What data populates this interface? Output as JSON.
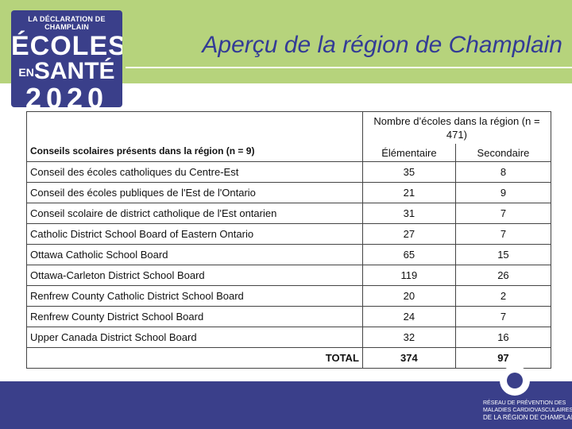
{
  "logo": {
    "line1": "LA DÉCLARATION DE CHAMPLAIN",
    "line2": "ÉCOLES",
    "line3_small": "EN",
    "line3": "SANTÉ",
    "line4": "2020"
  },
  "title": "Aperçu de la région de Champlain",
  "table": {
    "header_name": "Conseils scolaires présents dans la région (n = 9)",
    "header_group": "Nombre d’écoles dans la région (n = 471)",
    "header_elem": "Élémentaire",
    "header_sec": "Secondaire",
    "rows": [
      {
        "name": "Conseil des écoles catholiques du Centre-Est",
        "elem": "35",
        "sec": "8"
      },
      {
        "name": "Conseil des écoles publiques de l'Est de l'Ontario",
        "elem": "21",
        "sec": "9"
      },
      {
        "name": "Conseil scolaire de district catholique de l'Est ontarien",
        "elem": "31",
        "sec": "7"
      },
      {
        "name": "Catholic District School Board of Eastern Ontario",
        "elem": "27",
        "sec": "7"
      },
      {
        "name": "Ottawa Catholic School Board",
        "elem": "65",
        "sec": "15"
      },
      {
        "name": "Ottawa-Carleton District School Board",
        "elem": "119",
        "sec": "26"
      },
      {
        "name": "Renfrew County Catholic District School Board",
        "elem": "20",
        "sec": "2"
      },
      {
        "name": "Renfrew County District School Board",
        "elem": "24",
        "sec": "7"
      },
      {
        "name": "Upper Canada District School Board",
        "elem": "32",
        "sec": "16"
      }
    ],
    "total_label": "TOTAL",
    "total_elem": "374",
    "total_sec": "97"
  },
  "footer": {
    "line1": "RÉSEAU DE PRÉVENTION DES",
    "line2": "MALADIES CARDIOVASCULAIRES",
    "line3": "DE LA RÉGION DE CHAMPLAIN"
  },
  "colors": {
    "band_green": "#b6d37c",
    "brand_blue": "#3a3f8a",
    "title_blue": "#333b96"
  }
}
